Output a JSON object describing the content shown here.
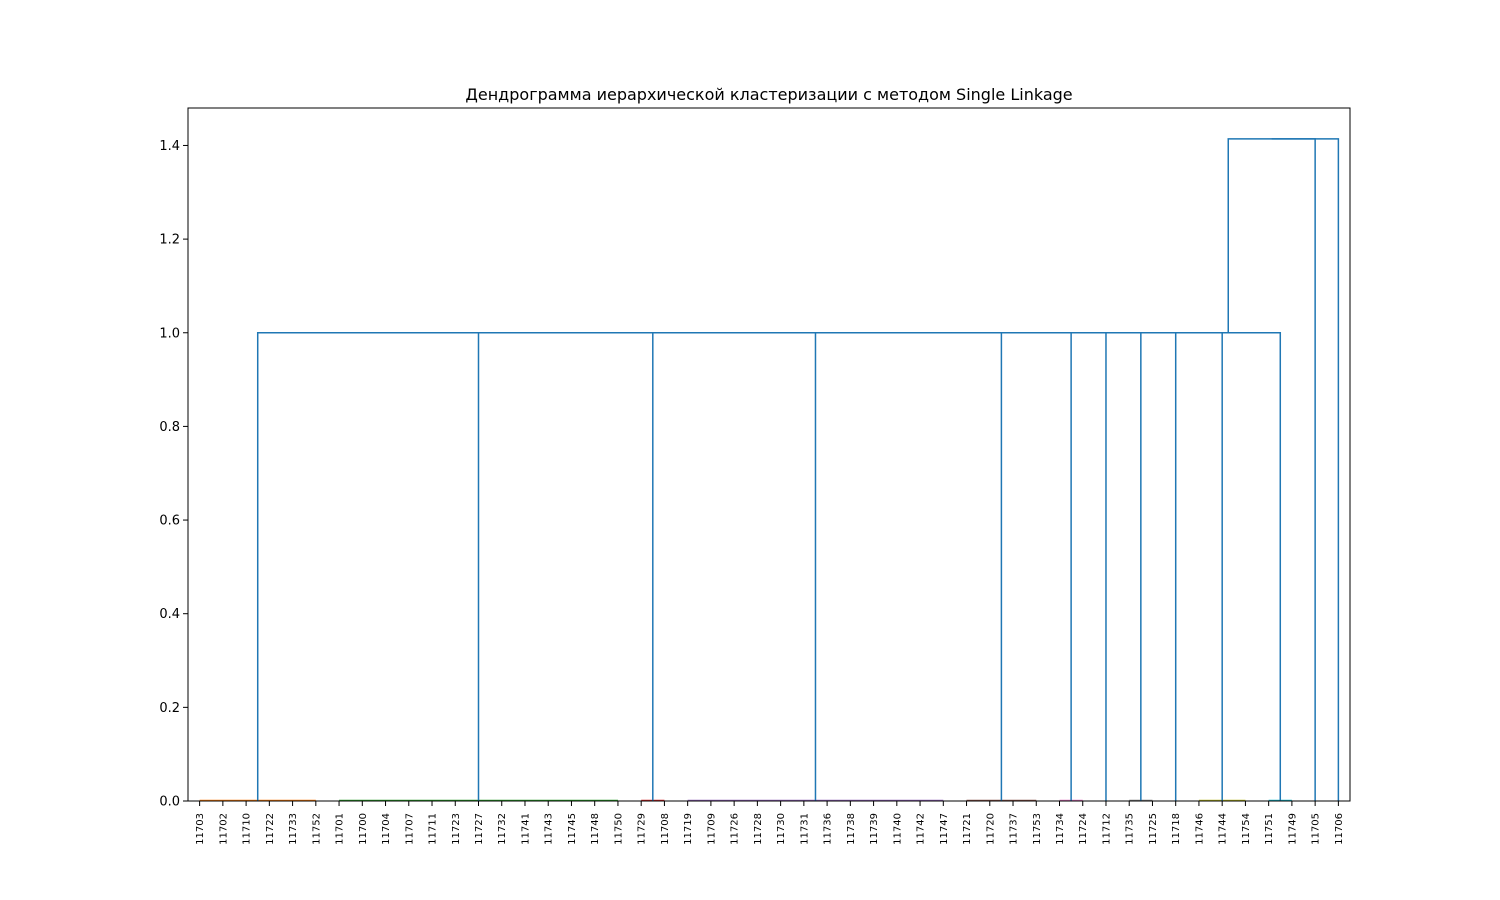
{
  "chart_data": {
    "type": "dendrogram",
    "title": "Дендрограмма иерархической кластеризации с методом Single Linkage",
    "xlabel": "",
    "ylabel": "",
    "ylim": [
      0,
      1.48
    ],
    "yticks": [
      "0.0",
      "0.2",
      "0.4",
      "0.6",
      "0.8",
      "1.0",
      "1.2",
      "1.4"
    ],
    "leaves": [
      "11703",
      "11702",
      "11710",
      "11722",
      "11733",
      "11752",
      "11701",
      "11700",
      "11704",
      "11707",
      "11711",
      "11723",
      "11727",
      "11732",
      "11741",
      "11743",
      "11745",
      "11748",
      "11750",
      "11729",
      "11708",
      "11719",
      "11709",
      "11726",
      "11728",
      "11730",
      "11731",
      "11736",
      "11738",
      "11739",
      "11740",
      "11742",
      "11747",
      "11721",
      "11720",
      "11737",
      "11753",
      "11734",
      "11724",
      "11712",
      "11735",
      "11725",
      "11718",
      "11746",
      "11744",
      "11754",
      "11751",
      "11749",
      "11705",
      "11706"
    ],
    "clusters": [
      {
        "name": "C1",
        "from": 0,
        "to": 5,
        "color": "#ff7f0e",
        "height": 0.0
      },
      {
        "name": "C2",
        "from": 6,
        "to": 18,
        "color": "#2ca02c",
        "height": 0.0
      },
      {
        "name": "C3",
        "from": 19,
        "to": 20,
        "color": "#d62728",
        "height": 0.0
      },
      {
        "name": "C4",
        "from": 21,
        "to": 32,
        "color": "#9467bd",
        "height": 0.0
      },
      {
        "name": "C5",
        "from": 33,
        "to": 36,
        "color": "#8c564b",
        "height": 0.0
      },
      {
        "name": "C6",
        "from": 37,
        "to": 38,
        "color": "#e377c2",
        "height": 0.0
      },
      {
        "name": "C7",
        "from": 40,
        "to": 41,
        "color": "#7f7f7f",
        "height": 0.0
      },
      {
        "name": "C8",
        "from": 43,
        "to": 45,
        "color": "#bcbd22",
        "height": 0.0
      },
      {
        "name": "C9",
        "from": 46,
        "to": 47,
        "color": "#17becf",
        "height": 0.0
      }
    ],
    "links": [
      {
        "left": "C1",
        "right": "C2",
        "height": 1.0,
        "color": "#1f77b4"
      },
      {
        "left": "L1",
        "right": "C3",
        "height": 1.0,
        "color": "#1f77b4"
      },
      {
        "left": "L2",
        "right": "C4",
        "height": 1.0,
        "color": "#1f77b4"
      },
      {
        "left": "L3",
        "right": "C5",
        "height": 1.0,
        "color": "#1f77b4"
      },
      {
        "left": "L4",
        "right": "C6",
        "height": 1.0,
        "color": "#1f77b4"
      },
      {
        "left": "L5",
        "right": 39,
        "height": 1.0,
        "color": "#1f77b4"
      },
      {
        "left": "L6",
        "right": "C7",
        "height": 1.0,
        "color": "#1f77b4"
      },
      {
        "left": "L7",
        "right": 42,
        "height": 1.0,
        "color": "#1f77b4"
      },
      {
        "left": "L8",
        "right": "C8",
        "height": 1.0,
        "color": "#1f77b4"
      },
      {
        "left": "L9",
        "right": "C9",
        "height": 1.0,
        "color": "#1f77b4"
      },
      {
        "left": "L10",
        "right": 48,
        "height": 1.414,
        "color": "#1f77b4"
      },
      {
        "left": "L11",
        "right": 49,
        "height": 1.414,
        "color": "#1f77b4"
      }
    ]
  }
}
